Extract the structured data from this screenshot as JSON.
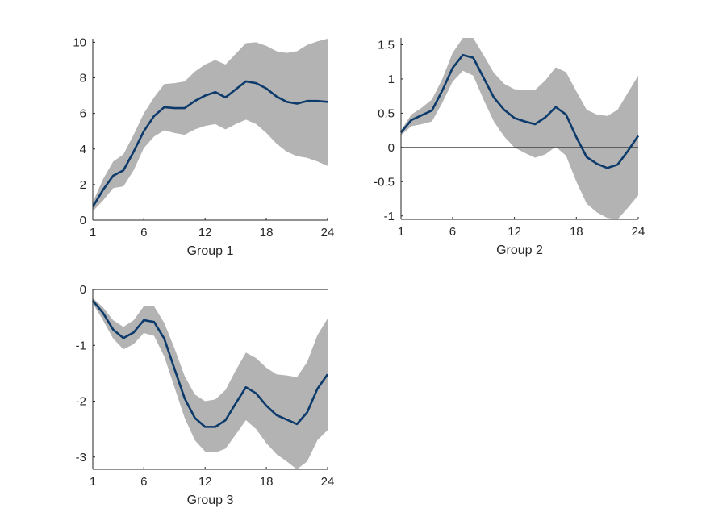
{
  "colors": {
    "line": "#0b3a6b",
    "band": "#b3b3b3",
    "axis": "#262626",
    "zero_line": "#404040"
  },
  "chart_data": [
    {
      "type": "line",
      "title": "Group 1",
      "x": [
        1,
        2,
        3,
        4,
        5,
        6,
        7,
        8,
        9,
        10,
        11,
        12,
        13,
        14,
        15,
        16,
        17,
        18,
        19,
        20,
        21,
        22,
        23,
        24
      ],
      "xticks": [
        1,
        6,
        12,
        18,
        24
      ],
      "yticks": [
        0,
        2,
        4,
        6,
        8,
        10
      ],
      "xlim": [
        1,
        24
      ],
      "ylim": [
        0,
        10.2
      ],
      "zero_line": false,
      "series": [
        {
          "role": "mean",
          "values": [
            0.75,
            1.7,
            2.5,
            2.8,
            3.85,
            5.0,
            5.85,
            6.35,
            6.3,
            6.3,
            6.7,
            7.0,
            7.2,
            6.9,
            7.35,
            7.8,
            7.7,
            7.4,
            6.95,
            6.65,
            6.55,
            6.7,
            6.7,
            6.65
          ]
        },
        {
          "role": "upper",
          "values": [
            1.0,
            2.3,
            3.3,
            3.7,
            4.8,
            6.0,
            6.9,
            7.65,
            7.7,
            7.8,
            8.35,
            8.75,
            9.0,
            8.75,
            9.35,
            9.95,
            10.0,
            9.8,
            9.5,
            9.4,
            9.5,
            9.85,
            10.05,
            10.2
          ]
        },
        {
          "role": "lower",
          "values": [
            0.5,
            1.1,
            1.8,
            1.9,
            2.8,
            4.05,
            4.7,
            5.05,
            4.9,
            4.8,
            5.1,
            5.3,
            5.4,
            5.1,
            5.4,
            5.65,
            5.4,
            4.9,
            4.3,
            3.85,
            3.6,
            3.5,
            3.3,
            3.05
          ]
        }
      ]
    },
    {
      "type": "line",
      "title": "Group 2",
      "x": [
        1,
        2,
        3,
        4,
        5,
        6,
        7,
        8,
        9,
        10,
        11,
        12,
        13,
        14,
        15,
        16,
        17,
        18,
        19,
        20,
        21,
        22,
        23,
        24
      ],
      "xticks": [
        1,
        6,
        12,
        18,
        24
      ],
      "yticks": [
        -1,
        -0.5,
        0,
        0.5,
        1,
        1.5
      ],
      "xlim": [
        1,
        24
      ],
      "ylim": [
        -1.05,
        1.6
      ],
      "zero_line": true,
      "series": [
        {
          "role": "mean",
          "values": [
            0.22,
            0.4,
            0.47,
            0.54,
            0.83,
            1.16,
            1.35,
            1.31,
            1.02,
            0.73,
            0.55,
            0.43,
            0.38,
            0.34,
            0.44,
            0.59,
            0.48,
            0.15,
            -0.14,
            -0.24,
            -0.3,
            -0.25,
            -0.05,
            0.17
          ]
        },
        {
          "role": "upper",
          "values": [
            0.25,
            0.48,
            0.58,
            0.7,
            1.0,
            1.38,
            1.6,
            1.6,
            1.35,
            1.09,
            0.93,
            0.85,
            0.84,
            0.84,
            0.98,
            1.17,
            1.1,
            0.82,
            0.55,
            0.48,
            0.46,
            0.55,
            0.8,
            1.05
          ]
        },
        {
          "role": "lower",
          "values": [
            0.18,
            0.31,
            0.34,
            0.38,
            0.65,
            0.96,
            1.12,
            1.05,
            0.7,
            0.38,
            0.16,
            0.0,
            -0.08,
            -0.15,
            -0.1,
            0.01,
            -0.12,
            -0.5,
            -0.82,
            -0.95,
            -1.03,
            -1.05,
            -0.88,
            -0.7
          ]
        }
      ]
    },
    {
      "type": "line",
      "title": "Group 3",
      "x": [
        1,
        2,
        3,
        4,
        5,
        6,
        7,
        8,
        9,
        10,
        11,
        12,
        13,
        14,
        15,
        16,
        17,
        18,
        19,
        20,
        21,
        22,
        23,
        24
      ],
      "xticks": [
        1,
        6,
        12,
        18,
        24
      ],
      "yticks": [
        -3,
        -2,
        -1,
        0
      ],
      "xlim": [
        1,
        24
      ],
      "ylim": [
        -3.22,
        0
      ],
      "zero_line": true,
      "series": [
        {
          "role": "mean",
          "values": [
            -0.2,
            -0.42,
            -0.72,
            -0.87,
            -0.77,
            -0.55,
            -0.58,
            -0.88,
            -1.42,
            -1.95,
            -2.3,
            -2.46,
            -2.46,
            -2.34,
            -2.04,
            -1.75,
            -1.86,
            -2.08,
            -2.25,
            -2.33,
            -2.41,
            -2.2,
            -1.78,
            -1.52
          ]
        },
        {
          "role": "upper",
          "values": [
            -0.15,
            -0.32,
            -0.55,
            -0.67,
            -0.55,
            -0.3,
            -0.3,
            -0.6,
            -1.05,
            -1.55,
            -1.88,
            -2.0,
            -1.97,
            -1.8,
            -1.45,
            -1.13,
            -1.23,
            -1.4,
            -1.52,
            -1.54,
            -1.57,
            -1.3,
            -0.82,
            -0.52
          ]
        },
        {
          "role": "lower",
          "values": [
            -0.25,
            -0.55,
            -0.88,
            -1.07,
            -0.98,
            -0.78,
            -0.83,
            -1.2,
            -1.75,
            -2.3,
            -2.7,
            -2.9,
            -2.92,
            -2.85,
            -2.6,
            -2.34,
            -2.5,
            -2.75,
            -2.95,
            -3.08,
            -3.22,
            -3.08,
            -2.7,
            -2.52
          ]
        }
      ]
    }
  ]
}
